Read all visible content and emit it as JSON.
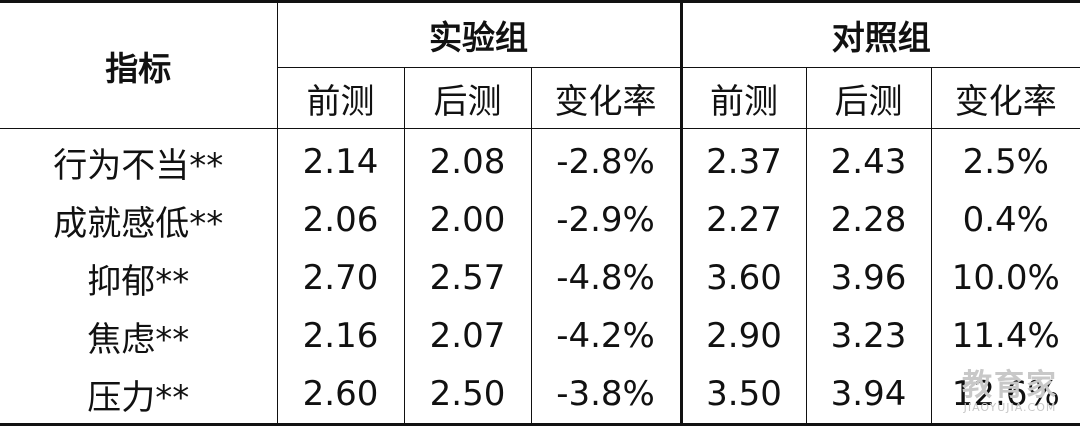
{
  "header": {
    "metric": "指标",
    "group_experimental": "实验组",
    "group_control": "对照组",
    "pre": "前测",
    "post": "后测",
    "change": "变化率"
  },
  "rows": [
    {
      "metric": "行为不当**",
      "exp_pre": "2.14",
      "exp_post": "2.08",
      "exp_change": "-2.8%",
      "ctl_pre": "2.37",
      "ctl_post": "2.43",
      "ctl_change": "2.5%"
    },
    {
      "metric": "成就感低**",
      "exp_pre": "2.06",
      "exp_post": "2.00",
      "exp_change": "-2.9%",
      "ctl_pre": "2.27",
      "ctl_post": "2.28",
      "ctl_change": "0.4%"
    },
    {
      "metric": "抑郁**",
      "exp_pre": "2.70",
      "exp_post": "2.57",
      "exp_change": "-4.8%",
      "ctl_pre": "3.60",
      "ctl_post": "3.96",
      "ctl_change": "10.0%"
    },
    {
      "metric": "焦虑**",
      "exp_pre": "2.16",
      "exp_post": "2.07",
      "exp_change": "-4.2%",
      "ctl_pre": "2.90",
      "ctl_post": "3.23",
      "ctl_change": "11.4%"
    },
    {
      "metric": "压力**",
      "exp_pre": "2.60",
      "exp_post": "2.50",
      "exp_change": "-3.8%",
      "ctl_pre": "3.50",
      "ctl_post": "3.94",
      "ctl_change": "12.6%"
    }
  ],
  "watermark": {
    "logo": "教育家",
    "sub": "JIAOYUJIA.COM"
  },
  "colors": {
    "text": "#111111",
    "rule": "#111111",
    "watermark": "#c8c8c8"
  }
}
